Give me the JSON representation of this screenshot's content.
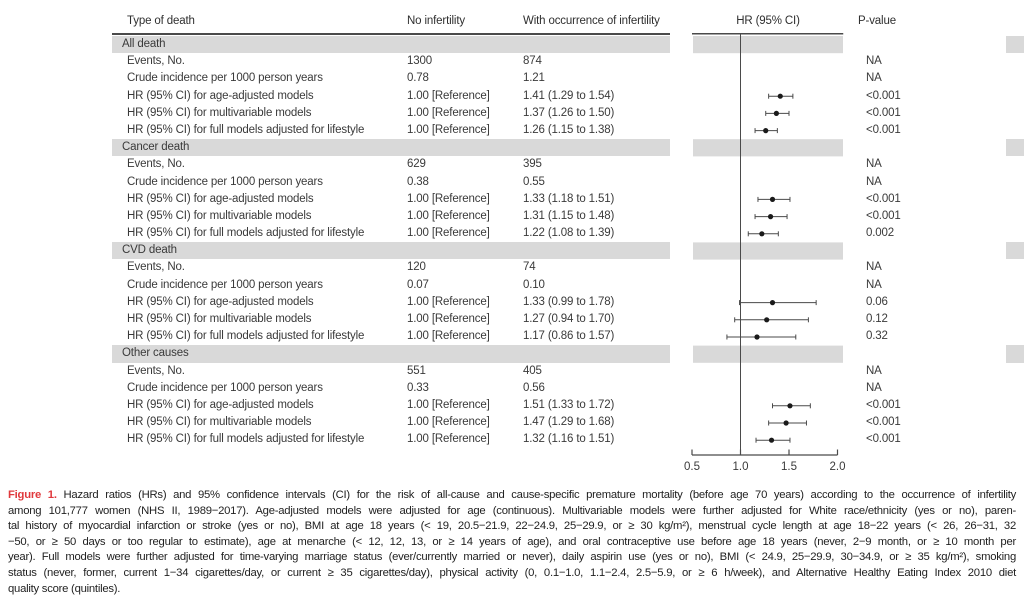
{
  "table": {
    "columns": [
      "Type of death",
      "No infertility",
      "With occurrence of infertility",
      "HR (95% CI)",
      "P-value"
    ],
    "sections": [
      {
        "label": "All death",
        "rows": [
          {
            "label": "Events, No.",
            "no_infertility": "1300",
            "with_infertility": "874",
            "p_value": "NA"
          },
          {
            "label": "Crude incidence per 1000 person years",
            "no_infertility": "0.78",
            "with_infertility": "1.21",
            "p_value": "NA"
          },
          {
            "label": "HR (95% CI) for age-adjusted models",
            "no_infertility": "1.00 [Reference]",
            "with_infertility": "1.41 (1.29 to 1.54)",
            "p_value": "<0.001"
          },
          {
            "label": "HR (95% CI) for multivariable models",
            "no_infertility": "1.00 [Reference]",
            "with_infertility": "1.37 (1.26 to 1.50)",
            "p_value": "<0.001"
          },
          {
            "label": "HR (95% CI) for full models adjusted for lifestyle",
            "no_infertility": "1.00 [Reference]",
            "with_infertility": "1.26 (1.15 to 1.38)",
            "p_value": "<0.001"
          }
        ]
      },
      {
        "label": "Cancer death",
        "rows": [
          {
            "label": "Events, No.",
            "no_infertility": "629",
            "with_infertility": "395",
            "p_value": "NA"
          },
          {
            "label": "Crude incidence per 1000 person years",
            "no_infertility": "0.38",
            "with_infertility": "0.55",
            "p_value": "NA"
          },
          {
            "label": "HR (95% CI) for age-adjusted models",
            "no_infertility": "1.00 [Reference]",
            "with_infertility": "1.33 (1.18 to 1.51)",
            "p_value": "<0.001"
          },
          {
            "label": "HR (95% CI) for multivariable models",
            "no_infertility": "1.00 [Reference]",
            "with_infertility": "1.31 (1.15 to 1.48)",
            "p_value": "<0.001"
          },
          {
            "label": "HR (95% CI) for full models adjusted for lifestyle",
            "no_infertility": "1.00 [Reference]",
            "with_infertility": "1.22 (1.08 to 1.39)",
            "p_value": "0.002"
          }
        ]
      },
      {
        "label": "CVD death",
        "rows": [
          {
            "label": "Events, No.",
            "no_infertility": "120",
            "with_infertility": "74",
            "p_value": "NA"
          },
          {
            "label": "Crude incidence per 1000 person years",
            "no_infertility": "0.07",
            "with_infertility": "0.10",
            "p_value": "NA"
          },
          {
            "label": "HR (95% CI) for age-adjusted models",
            "no_infertility": "1.00 [Reference]",
            "with_infertility": "1.33 (0.99 to 1.78)",
            "p_value": "0.06"
          },
          {
            "label": "HR (95% CI) for multivariable models",
            "no_infertility": "1.00 [Reference]",
            "with_infertility": "1.27 (0.94 to 1.70)",
            "p_value": "0.12"
          },
          {
            "label": "HR (95% CI) for full models adjusted for lifestyle",
            "no_infertility": "1.00 [Reference]",
            "with_infertility": "1.17 (0.86 to 1.57)",
            "p_value": "0.32"
          }
        ]
      },
      {
        "label": "Other causes",
        "rows": [
          {
            "label": "Events, No.",
            "no_infertility": "551",
            "with_infertility": "405",
            "p_value": "NA"
          },
          {
            "label": "Crude incidence per 1000 person years",
            "no_infertility": "0.33",
            "with_infertility": "0.56",
            "p_value": "NA"
          },
          {
            "label": "HR (95% CI) for age-adjusted models",
            "no_infertility": "1.00 [Reference]",
            "with_infertility": "1.51 (1.33 to 1.72)",
            "p_value": "<0.001"
          },
          {
            "label": "HR (95% CI) for multivariable models",
            "no_infertility": "1.00 [Reference]",
            "with_infertility": "1.47 (1.29 to 1.68)",
            "p_value": "<0.001"
          },
          {
            "label": "HR (95% CI) for full models adjusted for lifestyle",
            "no_infertility": "1.00 [Reference]",
            "with_infertility": "1.32 (1.16 to 1.51)",
            "p_value": "<0.001"
          }
        ]
      }
    ]
  },
  "chart_data": {
    "type": "scatter",
    "subtype": "forest-plot",
    "title": "HR (95% CI)",
    "xlabel": "",
    "xlim": [
      0.5,
      2.0
    ],
    "xticks": [
      "0.5",
      "1.0",
      "1.5",
      "2.0"
    ],
    "xtick_values": [
      0.5,
      1.0,
      1.5,
      2.0
    ],
    "reference_line_x": 1.0,
    "grid": false,
    "legend_position": "none",
    "series": [
      {
        "name": "All death",
        "points": [
          {
            "label": "HR (95% CI) for age-adjusted models",
            "hr": 1.41,
            "ci_low": 1.29,
            "ci_high": 1.54
          },
          {
            "label": "HR (95% CI) for multivariable models",
            "hr": 1.37,
            "ci_low": 1.26,
            "ci_high": 1.5
          },
          {
            "label": "HR (95% CI) for full models adjusted for lifestyle",
            "hr": 1.26,
            "ci_low": 1.15,
            "ci_high": 1.38
          }
        ]
      },
      {
        "name": "Cancer death",
        "points": [
          {
            "label": "HR (95% CI) for age-adjusted models",
            "hr": 1.33,
            "ci_low": 1.18,
            "ci_high": 1.51
          },
          {
            "label": "HR (95% CI) for multivariable models",
            "hr": 1.31,
            "ci_low": 1.15,
            "ci_high": 1.48
          },
          {
            "label": "HR (95% CI) for full models adjusted for lifestyle",
            "hr": 1.22,
            "ci_low": 1.08,
            "ci_high": 1.39
          }
        ]
      },
      {
        "name": "CVD death",
        "points": [
          {
            "label": "HR (95% CI) for age-adjusted models",
            "hr": 1.33,
            "ci_low": 0.99,
            "ci_high": 1.78
          },
          {
            "label": "HR (95% CI) for multivariable models",
            "hr": 1.27,
            "ci_low": 0.94,
            "ci_high": 1.7
          },
          {
            "label": "HR (95% CI) for full models adjusted for lifestyle",
            "hr": 1.17,
            "ci_low": 0.86,
            "ci_high": 1.57
          }
        ]
      },
      {
        "name": "Other causes",
        "points": [
          {
            "label": "HR (95% CI) for age-adjusted models",
            "hr": 1.51,
            "ci_low": 1.33,
            "ci_high": 1.72
          },
          {
            "label": "HR (95% CI) for multivariable models",
            "hr": 1.47,
            "ci_low": 1.29,
            "ci_high": 1.68
          },
          {
            "label": "HR (95% CI) for full models adjusted for lifestyle",
            "hr": 1.32,
            "ci_low": 1.16,
            "ci_high": 1.51
          }
        ]
      }
    ]
  },
  "caption": {
    "label": "Figure 1.",
    "lines": [
      "Hazard ratios (HRs) and 95% confidence intervals (CI) for the risk of all-cause and cause-specific premature mortality (before age 70 years) according to the occurrence of infertility",
      "among 101,777 women (NHS II, 1989−2017). Age-adjusted models were adjusted for age (continuous). Multivariable models were further adjusted for White race/ethnicity (yes or no), paren-",
      "tal history of myocardial infarction or stroke (yes or no), BMI at age 18 years (< 19, 20.5−21.9, 22−24.9, 25−29.9, or ≥ 30 kg/m²), menstrual cycle length at age 18−22 years (< 26, 26−31, 32",
      "−50, or ≥ 50 days or too regular to estimate), age at menarche (< 12, 12, 13, or ≥ 14 years of age), and oral contraceptive use before age 18 years (never, 2−9 month, or ≥ 10 month per",
      "year). Full models were further adjusted for time-varying marriage status (ever/currently married or never), daily aspirin use (yes or no), BMI (< 24.9, 25−29.9, 30−34.9, or ≥ 35 kg/m²), smoking",
      "status (never, former, current 1−34 cigarettes/day, or current ≥ 35 cigarettes/day), physical activity (0, 0.1−1.0, 1.1−2.4, 2.5−5.9, or ≥ 6 h/week), and Alternative Healthy Eating Index 2010 diet",
      "quality score (quintiles)."
    ]
  },
  "colors": {
    "section_band": "#d9d9d9",
    "rule": "#4a4a4a",
    "table_text": "#3a3a3a",
    "ci_line": "#4a4a4a",
    "marker_dot": "#1a1a1a",
    "figure_label": "#e0393d",
    "caption_text": "#1f1f1f"
  }
}
